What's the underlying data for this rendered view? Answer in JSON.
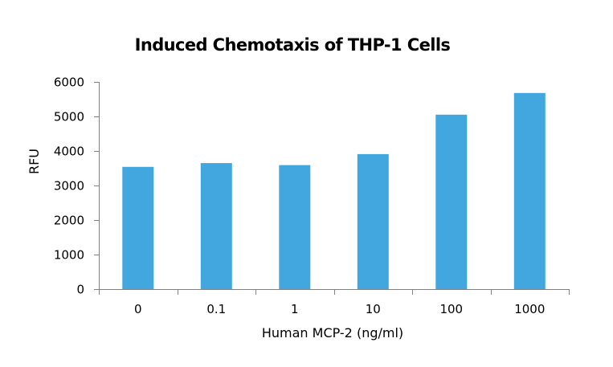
{
  "chart_data": {
    "type": "bar",
    "title": "Induced Chemotaxis of THP-1 Cells",
    "xlabel": "Human MCP-2 (ng/ml)",
    "ylabel": "RFU",
    "categories": [
      "0",
      "0.1",
      "1",
      "10",
      "100",
      "1000"
    ],
    "values": [
      3540,
      3650,
      3590,
      3910,
      5050,
      5680
    ],
    "ylim": [
      0,
      6000
    ],
    "yticks": [
      0,
      1000,
      2000,
      3000,
      4000,
      5000,
      6000
    ],
    "ytick_labels": [
      "0",
      "1000",
      "2000",
      "3000",
      "4000",
      "5000",
      "6000"
    ],
    "grid": false,
    "legend": "none",
    "bar_color": "#42A6DF",
    "axis_color": "#808080"
  }
}
